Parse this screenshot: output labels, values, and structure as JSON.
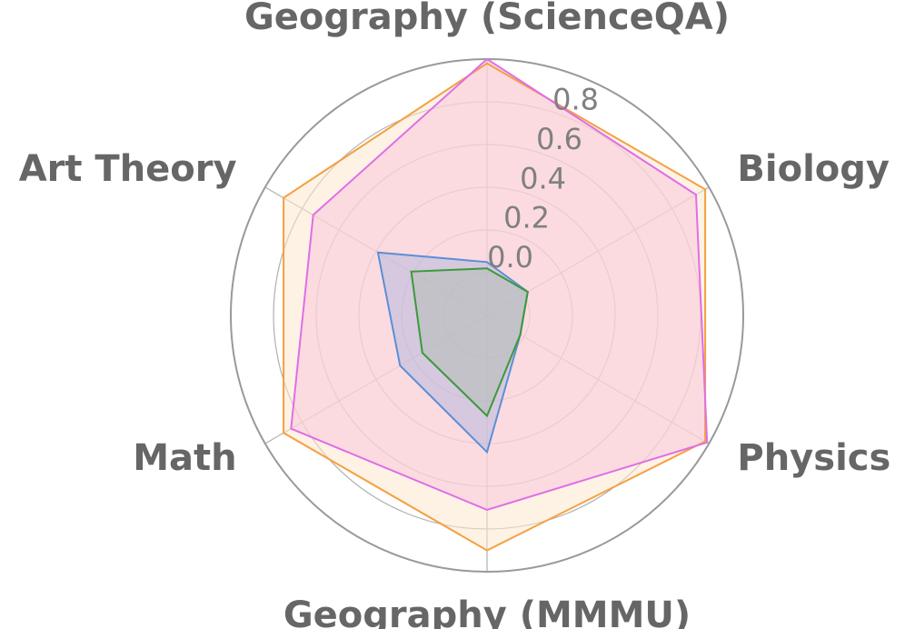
{
  "chart_data": {
    "type": "radar",
    "title": "",
    "categories": [
      "Geography (ScienceQA)",
      "Biology",
      "Physics",
      "Geography (MMMU)",
      "Math",
      "Art Theory"
    ],
    "rlim": [
      -0.2,
      1.0
    ],
    "rticks": [
      0.0,
      0.2,
      0.4,
      0.6,
      0.8
    ],
    "rtick_labels": [
      "0.0",
      "0.2",
      "0.4",
      "0.6",
      "0.8"
    ],
    "grid": true,
    "legend": "none",
    "series": [
      {
        "color": "#f4a040",
        "fill": "#fde8d0",
        "values": [
          0.98,
          0.98,
          0.98,
          0.9,
          0.9,
          0.9
        ]
      },
      {
        "color": "#e06ee6",
        "fill": "#f7c9dc",
        "values": [
          1.0,
          0.93,
          0.99,
          0.71,
          0.86,
          0.74
        ]
      },
      {
        "color": "#5b8fd6",
        "fill": "#b6b8de",
        "values": [
          0.05,
          0.02,
          -0.02,
          0.44,
          0.27,
          0.39
        ]
      },
      {
        "color": "#3a9a3a",
        "fill": "#b2bdb4",
        "values": [
          0.02,
          0.02,
          -0.02,
          0.27,
          0.15,
          0.21
        ]
      }
    ]
  }
}
